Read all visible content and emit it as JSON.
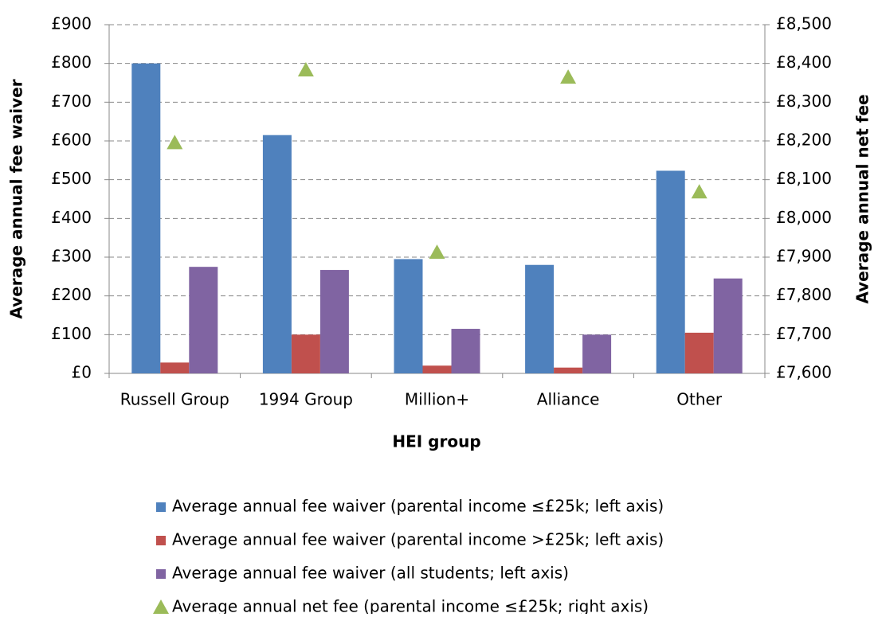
{
  "chart_data": {
    "type": "bar",
    "x_label": "HEI group",
    "y_label": "Average annual fee waiver",
    "y2_label": "Average annual net fee",
    "categories": [
      "Russell Group",
      "1994 Group",
      "Million+",
      "Alliance",
      "Other"
    ],
    "series": [
      {
        "name": "Average annual fee waiver (parental income ≤£25k; left axis)",
        "color": "#4f81bd",
        "values": [
          800,
          615,
          295,
          280,
          523
        ]
      },
      {
        "name": "Average annual fee waiver (parental income >£25k; left axis)",
        "color": "#c0504d",
        "values": [
          28,
          100,
          20,
          15,
          105
        ]
      },
      {
        "name": "Average annual fee waiver (all students; left axis)",
        "color": "#8064a2",
        "values": [
          275,
          267,
          115,
          100,
          245
        ]
      },
      {
        "name": "Average annual net fee (parental income ≤£25k; right axis)",
        "color": "#9bbb59",
        "axis": "y2",
        "type": "scatter",
        "marker": "triangle",
        "values": [
          8195,
          8383,
          7912,
          8364,
          8068
        ]
      }
    ],
    "ylim": [
      0,
      900
    ],
    "yticks": [
      {
        "value": 0,
        "label": "£0"
      },
      {
        "value": 100,
        "label": "£100"
      },
      {
        "value": 200,
        "label": "£200"
      },
      {
        "value": 300,
        "label": "£300"
      },
      {
        "value": 400,
        "label": "£400"
      },
      {
        "value": 500,
        "label": "£500"
      },
      {
        "value": 600,
        "label": "£600"
      },
      {
        "value": 700,
        "label": "£700"
      },
      {
        "value": 800,
        "label": "£800"
      },
      {
        "value": 900,
        "label": "£900"
      }
    ],
    "y2lim": [
      7600,
      8500
    ],
    "y2ticks": [
      {
        "value": 7600,
        "label": "£7,600"
      },
      {
        "value": 7700,
        "label": "£7,700"
      },
      {
        "value": 7800,
        "label": "£7,800"
      },
      {
        "value": 7900,
        "label": "£7,900"
      },
      {
        "value": 8000,
        "label": "£8,000"
      },
      {
        "value": 8100,
        "label": "£8,100"
      },
      {
        "value": 8200,
        "label": "£8,200"
      },
      {
        "value": 8300,
        "label": "£8,300"
      },
      {
        "value": 8400,
        "label": "£8,400"
      },
      {
        "value": 8500,
        "label": "£8,500"
      }
    ],
    "grid": true,
    "legend": "bottom"
  }
}
